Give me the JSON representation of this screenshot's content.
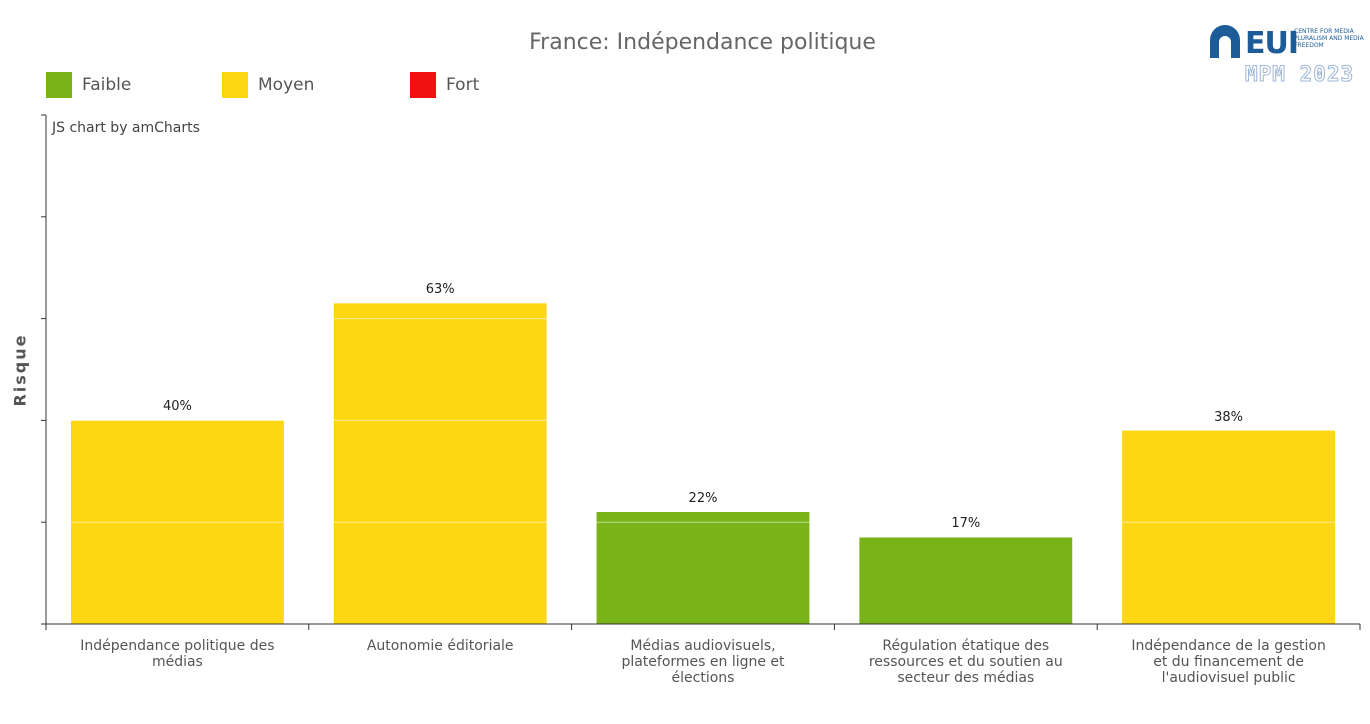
{
  "chart_data": {
    "type": "bar",
    "title": "France: Indépendance politique",
    "ylabel": "Risque",
    "xlabel": "",
    "ylim": [
      0,
      100
    ],
    "grid": true,
    "legend_position": "top-left",
    "categories": [
      "Indépendance politique des médias",
      "Autonomie éditoriale",
      "Médias audiovisuels, plateformes en ligne et élections",
      "Régulation étatique des ressources et du soutien au secteur des médias",
      "Indépendance de la gestion et du financement de l'audiovisuel public"
    ],
    "values": [
      40,
      63,
      22,
      17,
      38
    ],
    "value_labels": [
      "40%",
      "63%",
      "22%",
      "17%",
      "38%"
    ],
    "risk_levels": [
      "Moyen",
      "Moyen",
      "Faible",
      "Faible",
      "Moyen"
    ],
    "legend": [
      {
        "name": "Faible",
        "color": "#7ab317"
      },
      {
        "name": "Moyen",
        "color": "#fcd712"
      },
      {
        "name": "Fort",
        "color": "#f21111"
      }
    ]
  },
  "credit": "JS chart by amCharts",
  "logo": {
    "letters": "EUI",
    "subtitle": "CENTRE FOR MEDIA PLURALISM AND MEDIA FREEDOM",
    "edition": "MPM 2023"
  }
}
